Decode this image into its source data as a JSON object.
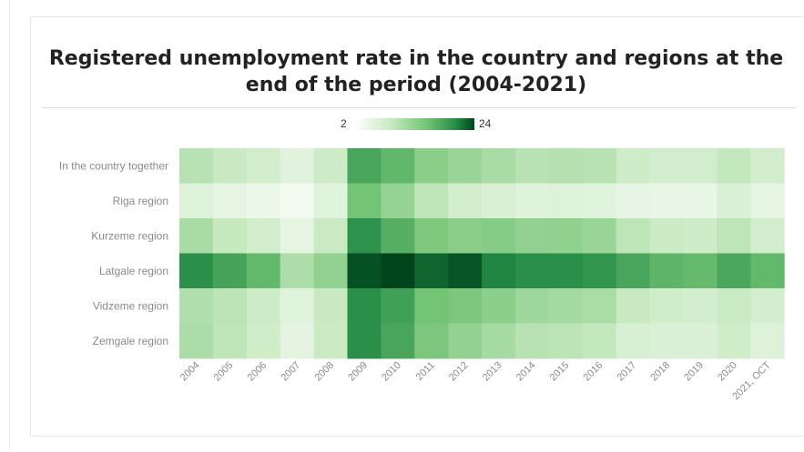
{
  "chart_data": {
    "type": "heatmap",
    "title": "Registered unemployment rate in the country and regions at the end of the period (2004-2021)",
    "legend": {
      "min": "2",
      "max": "24",
      "placement": "top-center"
    },
    "rows": [
      "In the country together",
      "Riga region",
      "Kurzeme region",
      "Latgale region",
      "Vidzeme region",
      "Zemgale region"
    ],
    "columns": [
      "2004",
      "2005",
      "2006",
      "2007",
      "2008",
      "2009",
      "2010",
      "2011",
      "2012",
      "2013",
      "2014",
      "2015",
      "2016",
      "2017",
      "2018",
      "2019",
      "2020",
      "2021, OCT"
    ],
    "values": [
      [
        8.5,
        7.4,
        6.5,
        4.9,
        7.0,
        16.0,
        14.3,
        11.5,
        10.5,
        9.5,
        8.5,
        8.7,
        8.5,
        6.8,
        6.4,
        6.4,
        7.7,
        6.5
      ],
      [
        5.3,
        4.6,
        4.0,
        3.3,
        5.0,
        13.0,
        10.8,
        8.0,
        6.5,
        5.7,
        5.1,
        5.2,
        5.0,
        4.4,
        4.2,
        4.3,
        5.5,
        4.6
      ],
      [
        9.5,
        7.5,
        6.5,
        4.6,
        7.3,
        17.8,
        15.0,
        12.3,
        11.5,
        11.8,
        11.0,
        11.1,
        10.5,
        8.1,
        7.1,
        6.8,
        8.1,
        6.4
      ],
      [
        18.0,
        16.2,
        14.2,
        9.2,
        11.0,
        23.0,
        24.0,
        21.5,
        22.7,
        19.0,
        18.1,
        18.0,
        17.5,
        16.0,
        14.5,
        14.0,
        15.8,
        14.2
      ],
      [
        9.0,
        8.2,
        7.0,
        5.0,
        7.4,
        18.0,
        16.5,
        13.0,
        12.5,
        11.4,
        10.2,
        9.8,
        9.4,
        7.4,
        6.6,
        6.3,
        7.2,
        6.3
      ],
      [
        9.3,
        8.1,
        6.6,
        4.7,
        7.2,
        18.0,
        16.0,
        12.5,
        11.0,
        9.6,
        8.5,
        8.2,
        7.7,
        5.9,
        5.5,
        5.5,
        6.6,
        5.2
      ]
    ],
    "color_scale": [
      "#ffffff",
      "#c7e9c0",
      "#74c476",
      "#238b45",
      "#00441b"
    ],
    "value_range": [
      2,
      24
    ]
  }
}
